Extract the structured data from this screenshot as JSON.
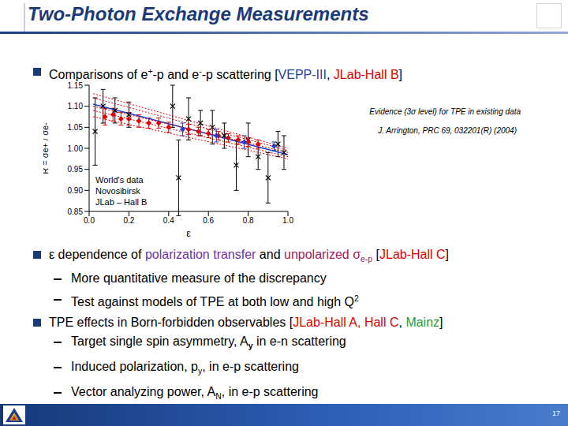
{
  "slide": {
    "title": "Two-Photon Exchange Measurements",
    "page_number": "17",
    "bullets": [
      {
        "runs": [
          {
            "text": "Comparisons of e"
          },
          {
            "text": "+",
            "sup": true
          },
          {
            "text": "-p and e"
          },
          {
            "text": "-",
            "sup": true
          },
          {
            "text": "-p scattering ["
          },
          {
            "text": "VEPP-III",
            "color": "#1f3f9f"
          },
          {
            "text": ", "
          },
          {
            "text": "JLab-Hall B",
            "color": "#e00000"
          },
          {
            "text": "]"
          }
        ],
        "sub": []
      },
      {
        "runs": [
          {
            "text": "ε dependence of "
          },
          {
            "text": "polarization transfer",
            "color": "#7030a0"
          },
          {
            "text": " and "
          },
          {
            "text": "unpolarized σ",
            "color": "#a0205a"
          },
          {
            "text": "e-p",
            "sub": true,
            "color": "#a0205a"
          },
          {
            "text": " ["
          },
          {
            "text": "JLab-Hall C",
            "color": "#e00000"
          },
          {
            "text": "]"
          }
        ],
        "sub": [
          {
            "runs": [
              {
                "text": "More quantitative measure of the discrepancy"
              }
            ]
          },
          {
            "runs": [
              {
                "text": "Test against models of TPE at both low and high Q"
              },
              {
                "text": "2",
                "sup": true
              }
            ]
          }
        ]
      },
      {
        "runs": [
          {
            "text": "TPE effects in Born-forbidden observables ["
          },
          {
            "text": "JLab-Hall A, Hall C",
            "color": "#e00000"
          },
          {
            "text": ", "
          },
          {
            "text": "Mainz",
            "color": "#2e9b2e"
          },
          {
            "text": "]"
          }
        ],
        "sub": [
          {
            "runs": [
              {
                "text": "Target single spin asymmetry, A"
              },
              {
                "text": "y",
                "sub": true,
                "bold": true
              },
              {
                "text": " in e-n scattering"
              }
            ]
          },
          {
            "runs": [
              {
                "text": "Induced polarization, p"
              },
              {
                "text": "y",
                "sub": true
              },
              {
                "text": ", in e-p scattering"
              }
            ]
          },
          {
            "runs": [
              {
                "text": "Vector analyzing power, A"
              },
              {
                "text": "N",
                "sub": true
              },
              {
                "text": ", in e-p scattering"
              }
            ]
          }
        ]
      }
    ]
  },
  "chart_data": {
    "type": "scatter",
    "xlabel": "ε",
    "ylabel": "R = σe+ / σe-",
    "xlim": [
      0,
      1
    ],
    "ylim": [
      0.85,
      1.15
    ],
    "xticks": [
      {
        "value": 0,
        "label": "0.0"
      },
      0.2,
      0.4,
      0.6,
      0.8,
      {
        "value": 1,
        "label": "1.0"
      }
    ],
    "yticks": [
      0.85,
      {
        "value": 0.9,
        "label": "0.90"
      },
      0.95,
      {
        "value": 1,
        "label": "1.00"
      },
      1.05,
      {
        "value": 1.1,
        "label": "1.10"
      },
      1.15
    ],
    "grid": false,
    "legend": "lower left",
    "annotations": [
      "Evidence (3σ level) for TPE in existing data",
      "J. Arrington, PRC 69, 032201(R) (2004)"
    ],
    "series": [
      {
        "name": "World's data",
        "color": "#000000",
        "marker": "x",
        "x": [
          0.03,
          0.07,
          0.13,
          0.2,
          0.42,
          0.45,
          0.5,
          0.56,
          0.62,
          0.68,
          0.74,
          0.8,
          0.85,
          0.9,
          0.95,
          0.98
        ],
        "values": [
          1.04,
          1.1,
          1.09,
          1.08,
          1.1,
          0.93,
          1.07,
          1.06,
          1.05,
          1.03,
          0.96,
          1.02,
          0.98,
          0.93,
          1.01,
          0.99
        ],
        "errors": [
          0.08,
          0.04,
          0.03,
          0.03,
          0.05,
          0.09,
          0.05,
          0.03,
          0.04,
          0.03,
          0.06,
          0.04,
          0.03,
          0.06,
          0.03,
          0.04
        ]
      },
      {
        "name": "Novosibirsk",
        "color": "#e00000",
        "marker": "diamond",
        "x": [
          0.08,
          0.12,
          0.16,
          0.2,
          0.25,
          0.3,
          0.35,
          0.4,
          0.5,
          0.55,
          0.6,
          0.65,
          0.7,
          0.75,
          0.8,
          0.85
        ],
        "values": [
          1.075,
          1.08,
          1.07,
          1.07,
          1.065,
          1.06,
          1.06,
          1.05,
          1.045,
          1.04,
          1.035,
          1.03,
          1.025,
          1.02,
          1.015,
          1.01
        ],
        "errors": [
          0.02,
          0.015,
          0.015,
          0.015,
          0.015,
          0.012,
          0.012,
          0.012,
          0.012,
          0.01,
          0.01,
          0.01,
          0.01,
          0.01,
          0.01,
          0.01
        ]
      },
      {
        "name": "JLab – Hall B",
        "color": "#1f3fcc",
        "marker": "diamond",
        "x": [
          0.47,
          0.64,
          0.78,
          0.93
        ],
        "values": [
          1.045,
          1.03,
          1.015,
          1.005
        ],
        "errors": [
          0.015,
          0.015,
          0.015,
          0.01
        ]
      }
    ],
    "fits": [
      {
        "color": "#1f3fcc",
        "line_style": "solid",
        "x": [
          0.02,
          1.0
        ],
        "values": [
          1.105,
          0.985
        ]
      },
      {
        "color": "#e00000",
        "line_style": "dotted",
        "x": [
          0.02,
          1.0
        ],
        "values": [
          1.13,
          1.0
        ]
      },
      {
        "color": "#e00000",
        "line_style": "dotted",
        "x": [
          0.02,
          1.0
        ],
        "values": [
          1.12,
          0.995
        ]
      },
      {
        "color": "#e00000",
        "line_style": "dotted",
        "x": [
          0.02,
          1.0
        ],
        "values": [
          1.1,
          0.99
        ]
      },
      {
        "color": "#e00000",
        "line_style": "dotted",
        "x": [
          0.02,
          1.0
        ],
        "values": [
          1.09,
          0.98
        ]
      },
      {
        "color": "#e00000",
        "line_style": "dotted",
        "x": [
          0.02,
          1.0
        ],
        "values": [
          1.075,
          0.975
        ]
      }
    ]
  }
}
